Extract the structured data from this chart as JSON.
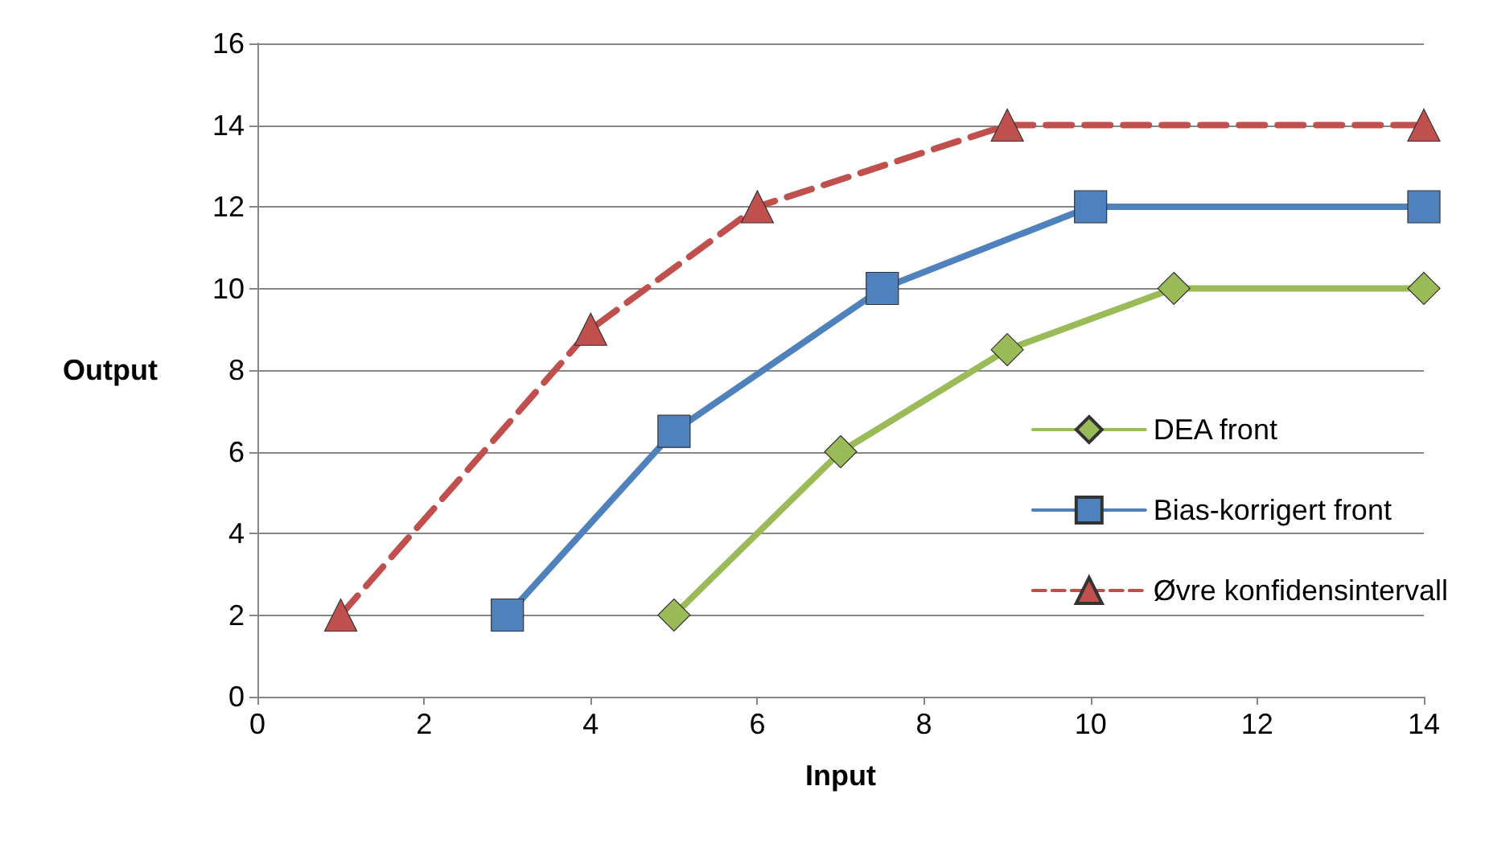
{
  "chart_data": {
    "type": "line",
    "xlabel": "Input",
    "ylabel": "Output",
    "xlim": [
      0,
      14
    ],
    "xticks": [
      0,
      2,
      4,
      6,
      8,
      10,
      12,
      14
    ],
    "ylim": [
      0,
      16
    ],
    "yticks": [
      0,
      2,
      4,
      6,
      8,
      10,
      12,
      14,
      16
    ],
    "grid": "y",
    "legend": "right",
    "series": [
      {
        "name": "DEA front",
        "color": "#9bbb59",
        "marker": "diamond",
        "line_style": "solid",
        "x": [
          5,
          7,
          9,
          11,
          14
        ],
        "values": [
          2,
          6,
          8.5,
          10,
          10
        ]
      },
      {
        "name": "Bias-korrigert front",
        "color": "#4f81bd",
        "marker": "square",
        "line_style": "solid",
        "x": [
          3,
          5,
          7.5,
          10,
          14
        ],
        "values": [
          2,
          6.5,
          10,
          12,
          12
        ]
      },
      {
        "name": "Øvre konfidensintervall",
        "color": "#c0504d",
        "marker": "triangle",
        "line_style": "dashed",
        "x": [
          1,
          4,
          6,
          9,
          14
        ],
        "values": [
          2,
          9,
          12,
          14,
          14
        ]
      }
    ]
  }
}
